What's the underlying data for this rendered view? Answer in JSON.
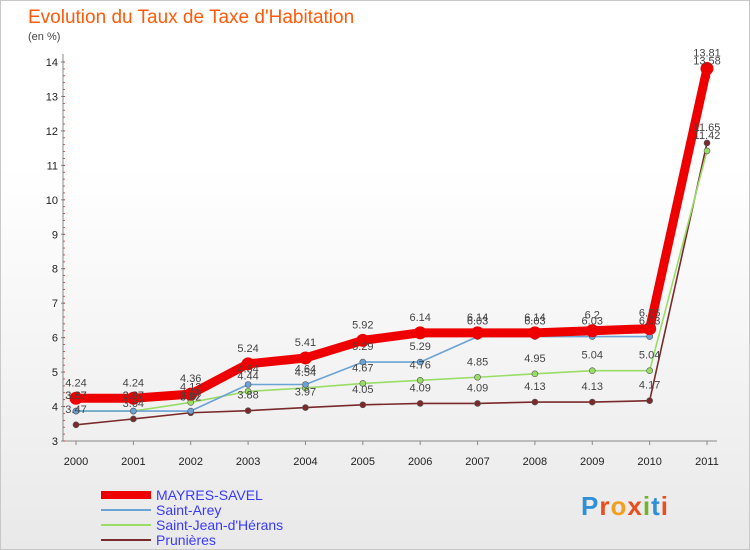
{
  "title": "Evolution du Taux de Taxe d'Habitation",
  "subtitle": "(en %)",
  "logo_text": "Proxiti",
  "chart_data": {
    "type": "line",
    "x": [
      "2000",
      "2001",
      "2002",
      "2003",
      "2004",
      "2005",
      "2006",
      "2007",
      "2008",
      "2009",
      "2010",
      "2011"
    ],
    "ylim": [
      3,
      14
    ],
    "yticks": [
      3,
      4,
      5,
      6,
      7,
      8,
      9,
      10,
      11,
      12,
      13,
      14
    ],
    "grid": false,
    "legend_position": "bottom-left",
    "series": [
      {
        "name": "MAYRES-SAVEL",
        "color": "#ee0000",
        "values": [
          4.24,
          4.24,
          4.36,
          5.24,
          5.41,
          5.92,
          6.14,
          6.14,
          6.14,
          6.2,
          6.26,
          13.81
        ],
        "labels": [
          "4.24",
          "4.24",
          "4.36",
          "5.24",
          "5.41",
          "5.92",
          "6.14",
          "6.14",
          "6.14",
          "6.2",
          "6.26",
          "13.81"
        ]
      },
      {
        "name": "Saint-Arey",
        "color": "#6aa3d5",
        "values": [
          3.87,
          3.87,
          3.87,
          4.64,
          4.64,
          5.29,
          5.29,
          6.03,
          6.03,
          6.03,
          6.03,
          13.58
        ],
        "labels": [
          "3.87",
          "3.87",
          "3.87",
          "4.64",
          "4.64",
          "5.29",
          "5.29",
          "6.03",
          "6.03",
          "6.03",
          "6.03",
          "13.58"
        ]
      },
      {
        "name": "Saint-Jean-d'Hérans",
        "color": "#99dd66",
        "values": [
          3.87,
          3.87,
          4.12,
          4.44,
          4.54,
          4.67,
          4.76,
          4.85,
          4.95,
          5.04,
          5.04,
          11.42
        ],
        "labels": [
          "3.87",
          "3.87",
          "4.12",
          "4.44",
          "4.54",
          "4.67",
          "4.76",
          "4.85",
          "4.95",
          "5.04",
          "5.04",
          "11.42"
        ]
      },
      {
        "name": "Prunières",
        "color": "#7a2a2a",
        "values": [
          3.47,
          3.64,
          3.82,
          3.88,
          3.97,
          4.05,
          4.09,
          4.09,
          4.13,
          4.13,
          4.17,
          11.65
        ],
        "labels": [
          "3.47",
          "3.64",
          "3.82",
          "3.88",
          "3.97",
          "4.05",
          "4.09",
          "4.09",
          "4.13",
          "4.13",
          "4.17",
          "11.65"
        ]
      }
    ]
  }
}
